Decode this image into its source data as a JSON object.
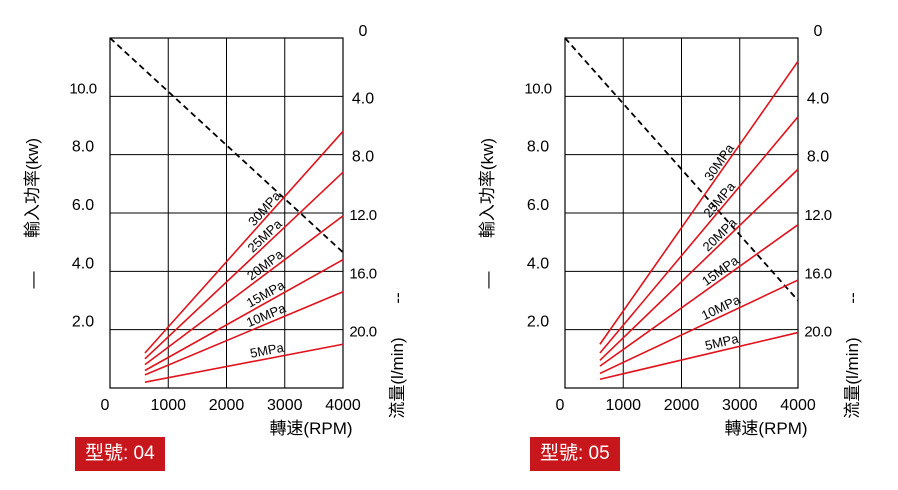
{
  "chart_data": [
    {
      "type": "line",
      "model_label": "型號: 04",
      "xlabel": "轉速(RPM)",
      "ylabel_left": "輸入功率(kw)",
      "ylabel_right": "流量(l/min)",
      "left_legend_mark": "—",
      "right_legend_mark": "--",
      "xlim": [
        0,
        4000
      ],
      "ylim_left": [
        0,
        12
      ],
      "ylim_right": [
        0,
        24
      ],
      "x_ticks": [
        "0",
        "1000",
        "2000",
        "3000",
        "4000"
      ],
      "left_ticks": [
        {
          "value": 2,
          "label": "2.0"
        },
        {
          "value": 4,
          "label": "4.0"
        },
        {
          "value": 6,
          "label": "6.0"
        },
        {
          "value": 8,
          "label": "8.0"
        },
        {
          "value": 10,
          "label": "10.0"
        }
      ],
      "right_ticks": [
        {
          "value": 0,
          "label": "0"
        },
        {
          "value": 4,
          "label": "4.0"
        },
        {
          "value": 8,
          "label": "8.0"
        },
        {
          "value": 12,
          "label": "12.0"
        },
        {
          "value": 16,
          "label": "16.0"
        },
        {
          "value": 20,
          "label": "20.0"
        }
      ],
      "series": [
        {
          "name": "30MPa",
          "color": "#e0121b",
          "x": [
            600,
            4000
          ],
          "y": [
            1.2,
            8.8
          ]
        },
        {
          "name": "25MPa",
          "color": "#e0121b",
          "x": [
            600,
            4000
          ],
          "y": [
            1.0,
            7.4
          ]
        },
        {
          "name": "20MPa",
          "color": "#e0121b",
          "x": [
            600,
            4000
          ],
          "y": [
            0.8,
            5.9
          ]
        },
        {
          "name": "15MPa",
          "color": "#e0121b",
          "x": [
            600,
            4000
          ],
          "y": [
            0.6,
            4.4
          ]
        },
        {
          "name": "10MPa",
          "color": "#e0121b",
          "x": [
            600,
            4000
          ],
          "y": [
            0.45,
            3.3
          ]
        },
        {
          "name": "5MPa",
          "color": "#e0121b",
          "x": [
            600,
            4000
          ],
          "y": [
            0.2,
            1.5
          ]
        }
      ],
      "flow_line": {
        "style": "dashed",
        "color": "#000000",
        "x": [
          0,
          4000
        ],
        "y_right": [
          0,
          14.7
        ]
      }
    },
    {
      "type": "line",
      "model_label": "型號: 05",
      "xlabel": "轉速(RPM)",
      "ylabel_left": "輸入功率(kw)",
      "ylabel_right": "流量(l/min)",
      "left_legend_mark": "—",
      "right_legend_mark": "--",
      "xlim": [
        0,
        4000
      ],
      "ylim_left": [
        0,
        12
      ],
      "ylim_right": [
        0,
        24
      ],
      "x_ticks": [
        "0",
        "1000",
        "2000",
        "3000",
        "4000"
      ],
      "left_ticks": [
        {
          "value": 2,
          "label": "2.0"
        },
        {
          "value": 4,
          "label": "4.0"
        },
        {
          "value": 6,
          "label": "6.0"
        },
        {
          "value": 8,
          "label": "8.0"
        },
        {
          "value": 10,
          "label": "10.0"
        }
      ],
      "right_ticks": [
        {
          "value": 0,
          "label": "0"
        },
        {
          "value": 4,
          "label": "4.0"
        },
        {
          "value": 8,
          "label": "8.0"
        },
        {
          "value": 12,
          "label": "12.0"
        },
        {
          "value": 16,
          "label": "16.0"
        },
        {
          "value": 20,
          "label": "20.0"
        }
      ],
      "series": [
        {
          "name": "30MPa",
          "color": "#e0121b",
          "x": [
            600,
            4000
          ],
          "y": [
            1.5,
            11.2
          ]
        },
        {
          "name": "25MPa",
          "color": "#e0121b",
          "x": [
            600,
            4000
          ],
          "y": [
            1.2,
            9.3
          ]
        },
        {
          "name": "20MPa",
          "color": "#e0121b",
          "x": [
            600,
            4000
          ],
          "y": [
            0.95,
            7.5
          ]
        },
        {
          "name": "15MPa",
          "color": "#e0121b",
          "x": [
            600,
            4000
          ],
          "y": [
            0.75,
            5.6
          ]
        },
        {
          "name": "10MPa",
          "color": "#e0121b",
          "x": [
            600,
            4000
          ],
          "y": [
            0.5,
            3.7
          ]
        },
        {
          "name": "5MPa",
          "color": "#e0121b",
          "x": [
            600,
            4000
          ],
          "y": [
            0.3,
            1.9
          ]
        }
      ],
      "flow_line": {
        "style": "dashed",
        "color": "#000000",
        "x": [
          0,
          4000
        ],
        "y_right": [
          0,
          18
        ]
      }
    }
  ]
}
